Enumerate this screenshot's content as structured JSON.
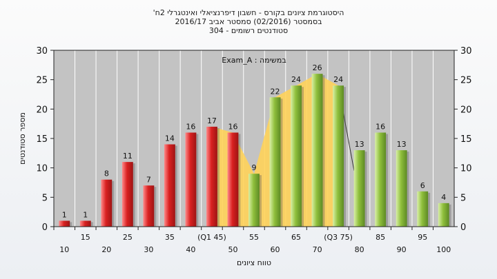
{
  "header": {
    "line1": "היסטוגרמת ציונים בקורס - חשבון דיפרנציאלי ואינטגרלי 2ח'",
    "line2": "בסמסטר (02/2016) סמסטר אביב 2016/17",
    "line3": "סטודנטים רשומים - 304"
  },
  "chart_data": {
    "type": "bar",
    "ylabel": "מספר סטודנטים",
    "xlabel": "טווח ציונים",
    "ylim": [
      0,
      30
    ],
    "yticks": [
      0,
      5,
      10,
      15,
      20,
      25,
      30
    ],
    "annotation": "Exam_A : במשימה",
    "categories": [
      "10",
      "15",
      "20",
      "25",
      "30",
      "35",
      "40",
      "(Q1 45)",
      "50",
      "55",
      "60",
      "65",
      "70",
      "(Q3 75)",
      "80",
      "85",
      "90",
      "95",
      "100"
    ],
    "values": [
      1,
      1,
      8,
      11,
      7,
      14,
      16,
      17,
      16,
      9,
      22,
      24,
      26,
      24,
      13,
      16,
      13,
      6,
      4
    ],
    "bar_colors": [
      "red",
      "red",
      "red",
      "red",
      "red",
      "red",
      "red",
      "red",
      "red",
      "green",
      "green",
      "green",
      "green",
      "green",
      "green",
      "green",
      "green",
      "green",
      "green"
    ],
    "iqr_area": {
      "from_category": "(Q1 45)",
      "to_category": "(Q3 75)"
    },
    "grid": true,
    "colors": {
      "red": "#d92121",
      "green": "#8fbf3c",
      "area": "#ffd35a",
      "plot_bg": "#c3c3c3",
      "grid": "#ffffff"
    }
  }
}
